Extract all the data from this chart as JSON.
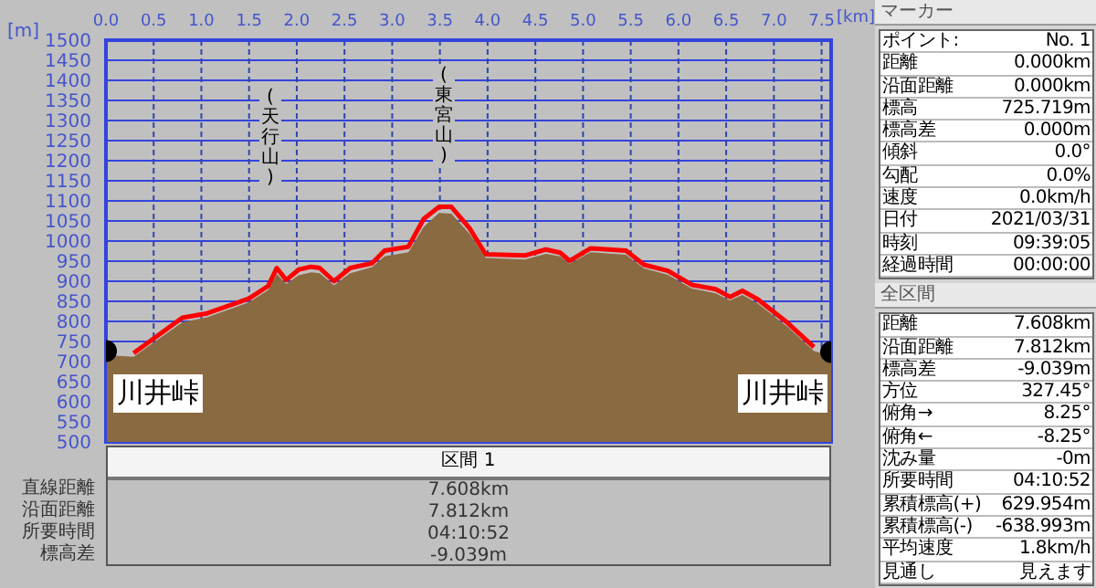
{
  "chart_data": {
    "type": "area",
    "xlabel": "[km]",
    "ylabel": "[m]",
    "x": [
      0,
      0.29,
      0.8,
      1.06,
      1.5,
      1.7,
      1.79,
      1.89,
      2.02,
      2.15,
      2.24,
      2.39,
      2.56,
      2.79,
      2.92,
      3.17,
      3.33,
      3.49,
      3.62,
      3.81,
      3.98,
      4.39,
      4.61,
      4.76,
      4.86,
      5.08,
      5.45,
      5.64,
      5.89,
      6.14,
      6.39,
      6.54,
      6.67,
      6.83,
      7.14,
      7.42,
      7.6
    ],
    "series": [
      {
        "color": "#8a6a40",
        "values": [
          716,
          712,
          798,
          810,
          848,
          878,
          918,
          893,
          915,
          922,
          920,
          890,
          920,
          935,
          962,
          972,
          1035,
          1070,
          1068,
          1018,
          958,
          954,
          968,
          962,
          944,
          972,
          966,
          932,
          916,
          882,
          870,
          852,
          866,
          845,
          787,
          726,
          714
        ]
      },
      {
        "type": "line",
        "color": "#ff0000",
        "values": [
          null,
          721,
          809,
          820,
          857,
          888,
          933,
          903,
          929,
          936,
          933,
          900,
          933,
          945,
          976,
          986,
          1055,
          1085,
          1085,
          1032,
          967,
          964,
          979,
          971,
          951,
          982,
          976,
          941,
          926,
          891,
          880,
          861,
          876,
          855,
          797,
          736,
          null
        ]
      },
      {
        "type": "scatter",
        "color": "#000000",
        "marker": "circle",
        "x": [
          0,
          7.6
        ],
        "values": [
          726,
          724
        ]
      }
    ],
    "xlim": [
      0,
      7.6
    ],
    "xticks": [
      {
        "value": 0,
        "label": "0.0"
      },
      {
        "value": 0.5,
        "label": "0.5"
      },
      {
        "value": 1,
        "label": "1.0"
      },
      {
        "value": 1.5,
        "label": "1.5"
      },
      {
        "value": 2,
        "label": "2.0"
      },
      {
        "value": 2.5,
        "label": "2.5"
      },
      {
        "value": 3,
        "label": "3.0"
      },
      {
        "value": 3.5,
        "label": "3.5"
      },
      {
        "value": 4,
        "label": "4.0"
      },
      {
        "value": 4.5,
        "label": "4.5"
      },
      {
        "value": 5,
        "label": "5.0"
      },
      {
        "value": 5.5,
        "label": "5.5"
      },
      {
        "value": 6,
        "label": "6.0"
      },
      {
        "value": 6.5,
        "label": "6.5"
      },
      {
        "value": 7,
        "label": "7.0"
      },
      {
        "value": 7.5,
        "label": "7.5"
      }
    ],
    "ylim": [
      500,
      1500
    ],
    "yticks": [
      500,
      550,
      600,
      650,
      700,
      750,
      800,
      850,
      900,
      950,
      1000,
      1050,
      1100,
      1150,
      1200,
      1250,
      1300,
      1350,
      1400,
      1450,
      1500
    ],
    "grid": true,
    "legend": false,
    "marker": "none",
    "line_style": "solid",
    "annotations": [
      "(天行山)",
      "(東宮山)",
      "川井峠",
      "川井峠",
      "マーカー",
      "ポイント:",
      "No. 1",
      "距離",
      "0.000km",
      "沿面距離",
      "0.000km",
      "標高",
      "725.719m",
      "標高差",
      "0.000m",
      "傾斜",
      "0.0°",
      "勾配",
      "0.0%",
      "速度",
      "0.0km/h",
      "日付",
      "2021/03/31",
      "時刻",
      "09:39:05",
      "経過時間",
      "00:00:00",
      "全区間",
      "距離",
      "7.608km",
      "沿面距離",
      "7.812km",
      "標高差",
      "-9.039m",
      "方位",
      "327.45°",
      "俯角→",
      "8.25°",
      "俯角←",
      "-8.25°",
      "沈み量",
      "-0m",
      "所要時間",
      "04:10:52",
      "累積標高(+)",
      "629.954m",
      "累積標高(-)",
      "-638.993m",
      "平均速度",
      "1.8km/h",
      "見通し",
      "見えます",
      "区間 1",
      "直線距離",
      "7.608km",
      "沿面距離",
      "7.812km",
      "所要時間",
      "04:10:52",
      "標高差",
      "-9.039m"
    ]
  }
}
